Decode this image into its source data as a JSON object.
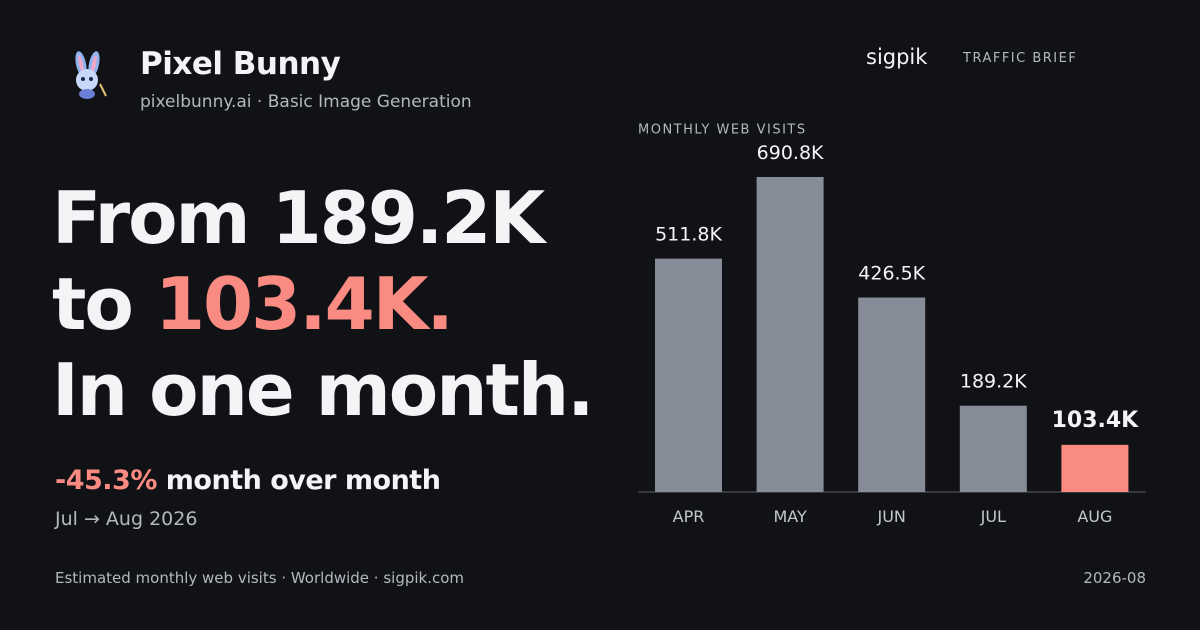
{
  "header": {
    "title": "Pixel Bunny",
    "subtitle": "pixelbunny.ai · Basic Image Generation",
    "site": "sigpik",
    "kind": "TRAFFIC BRIEF"
  },
  "headline": {
    "line1": "From 189.2K",
    "line2_start": "to ",
    "line2_highlight": "103.4K.",
    "line3": "In one month."
  },
  "change": {
    "value": "-45.3%",
    "text": " month over month",
    "period": "Jul → Aug 2026"
  },
  "footer": {
    "source": "Estimated monthly web visits · Worldwide · sigpik.com",
    "date": "2026-08"
  },
  "chart_data": {
    "type": "bar",
    "title": "MONTHLY WEB VISITS",
    "categories": [
      "APR",
      "MAY",
      "JUN",
      "JUL",
      "AUG"
    ],
    "values": [
      511.8,
      690.8,
      426.5,
      189.2,
      103.4
    ],
    "value_labels": [
      "511.8K",
      "690.8K",
      "426.5K",
      "189.2K",
      "103.4K"
    ],
    "colors": [
      "#878c99",
      "#878c99",
      "#878c99",
      "#878c99",
      "#f98b82"
    ]
  }
}
